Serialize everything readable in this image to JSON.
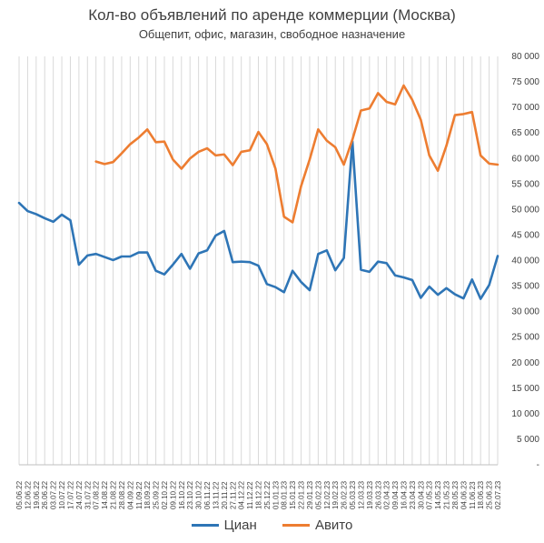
{
  "chart_data": {
    "type": "line",
    "title": "Кол-во объявлений по аренде коммерции (Москва)",
    "subtitle": "Общепит, офис, магазин, свободное назначение",
    "xlabel": "",
    "ylabel": "",
    "ylim": [
      0,
      80000
    ],
    "y_ticks": [
      {
        "value": 0,
        "label": "-"
      },
      {
        "value": 5000,
        "label": "5 000"
      },
      {
        "value": 10000,
        "label": "10 000"
      },
      {
        "value": 15000,
        "label": "15 000"
      },
      {
        "value": 20000,
        "label": "20 000"
      },
      {
        "value": 25000,
        "label": "25 000"
      },
      {
        "value": 30000,
        "label": "30 000"
      },
      {
        "value": 35000,
        "label": "35 000"
      },
      {
        "value": 40000,
        "label": "40 000"
      },
      {
        "value": 45000,
        "label": "45 000"
      },
      {
        "value": 50000,
        "label": "50 000"
      },
      {
        "value": 55000,
        "label": "55 000"
      },
      {
        "value": 60000,
        "label": "60 000"
      },
      {
        "value": 65000,
        "label": "65 000"
      },
      {
        "value": 70000,
        "label": "70 000"
      },
      {
        "value": 75000,
        "label": "75 000"
      },
      {
        "value": 80000,
        "label": "80 000"
      }
    ],
    "y_axis_position": "right",
    "grid": "vertical",
    "legend_position": "bottom",
    "categories": [
      "05.06.22",
      "12.06.22",
      "19.06.22",
      "26.06.22",
      "03.07.22",
      "10.07.22",
      "17.07.22",
      "24.07.22",
      "31.07.22",
      "07.08.22",
      "14.08.22",
      "21.08.22",
      "28.08.22",
      "04.09.22",
      "11.09.22",
      "18.09.22",
      "25.09.22",
      "02.10.22",
      "09.10.22",
      "16.10.22",
      "23.10.22",
      "30.10.22",
      "06.11.22",
      "13.11.22",
      "20.11.22",
      "27.11.22",
      "04.12.22",
      "11.12.22",
      "18.12.22",
      "25.12.22",
      "01.01.23",
      "08.01.23",
      "15.01.23",
      "22.01.23",
      "29.01.23",
      "05.02.23",
      "12.02.23",
      "19.02.23",
      "26.02.23",
      "05.03.23",
      "12.03.23",
      "19.03.23",
      "26.03.23",
      "02.04.23",
      "09.04.23",
      "16.04.23",
      "23.04.23",
      "30.04.23",
      "07.05.23",
      "14.05.23",
      "21.05.23",
      "28.05.23",
      "04.06.23",
      "11.06.23",
      "18.06.23",
      "25.06.23",
      "02.07.23"
    ],
    "series": [
      {
        "name": "Циан",
        "color": "#2e75b6",
        "values": [
          51300,
          49700,
          49100,
          48300,
          47600,
          49000,
          47900,
          39200,
          41000,
          41300,
          40700,
          40100,
          40800,
          40800,
          41600,
          41600,
          38000,
          37300,
          39200,
          41300,
          38400,
          41400,
          42000,
          44900,
          45800,
          39700,
          39800,
          39700,
          39000,
          35400,
          34800,
          33800,
          38000,
          35800,
          34200,
          41300,
          42000,
          38100,
          40500,
          63400,
          38200,
          37800,
          39800,
          39500,
          37100,
          36700,
          36200,
          32700,
          34900,
          33300,
          34600,
          33400,
          32600,
          36300,
          32500,
          35200,
          40900
        ]
      },
      {
        "name": "Авито",
        "color": "#ed7d31",
        "values": [
          null,
          null,
          null,
          null,
          null,
          null,
          null,
          null,
          null,
          59400,
          58900,
          59300,
          61000,
          62800,
          64100,
          65700,
          63200,
          63300,
          59800,
          58000,
          60000,
          61300,
          62000,
          60600,
          60800,
          58700,
          61300,
          61600,
          65200,
          62800,
          58000,
          48600,
          47500,
          54600,
          59800,
          65700,
          63500,
          62200,
          58800,
          63700,
          69400,
          69800,
          72800,
          71100,
          70600,
          74300,
          71500,
          67600,
          60600,
          57600,
          62500,
          68500,
          68700,
          69100,
          60600,
          59000,
          58800
        ]
      }
    ]
  }
}
